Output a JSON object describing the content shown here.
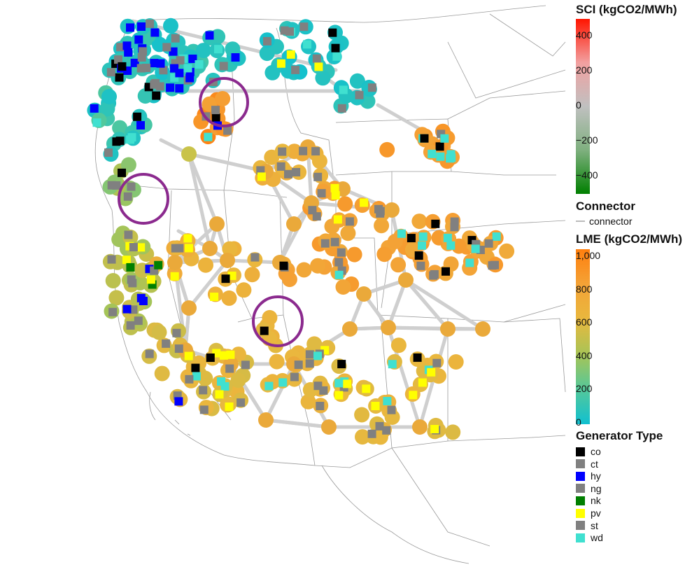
{
  "legend": {
    "sci": {
      "title": "SCI (kgCO2/MWh)",
      "ticks": [
        "400",
        "200",
        "0",
        "−200",
        "−400"
      ],
      "colors": [
        "#ff1500",
        "#f2a0a0",
        "#c0c0c0",
        "#7fb07f",
        "#007f00"
      ]
    },
    "connector": {
      "title": "Connector",
      "label": "connector",
      "color": "#bbbbbb"
    },
    "lme": {
      "title": "LME (kgCO2/MWh)",
      "ticks": [
        "1,000",
        "800",
        "600",
        "400",
        "200",
        "0"
      ],
      "colors": [
        "#ff7f0e",
        "#f4a236",
        "#e9b83e",
        "#a8c456",
        "#55c89a",
        "#10c0d0"
      ]
    },
    "generator": {
      "title": "Generator Type",
      "items": [
        {
          "label": "co",
          "color": "#000000"
        },
        {
          "label": "ct",
          "color": "#808080"
        },
        {
          "label": "hy",
          "color": "#0000ff"
        },
        {
          "label": "ng",
          "color": "#808080"
        },
        {
          "label": "nk",
          "color": "#007f00"
        },
        {
          "label": "pv",
          "color": "#ffff00"
        },
        {
          "label": "st",
          "color": "#808080"
        },
        {
          "label": "wd",
          "color": "#40e0d0"
        }
      ]
    }
  },
  "map": {
    "colors": {
      "connector": "#cfcfcf",
      "highlight_ring": "#8b2a8e",
      "border": "#9a9a9a"
    }
  }
}
